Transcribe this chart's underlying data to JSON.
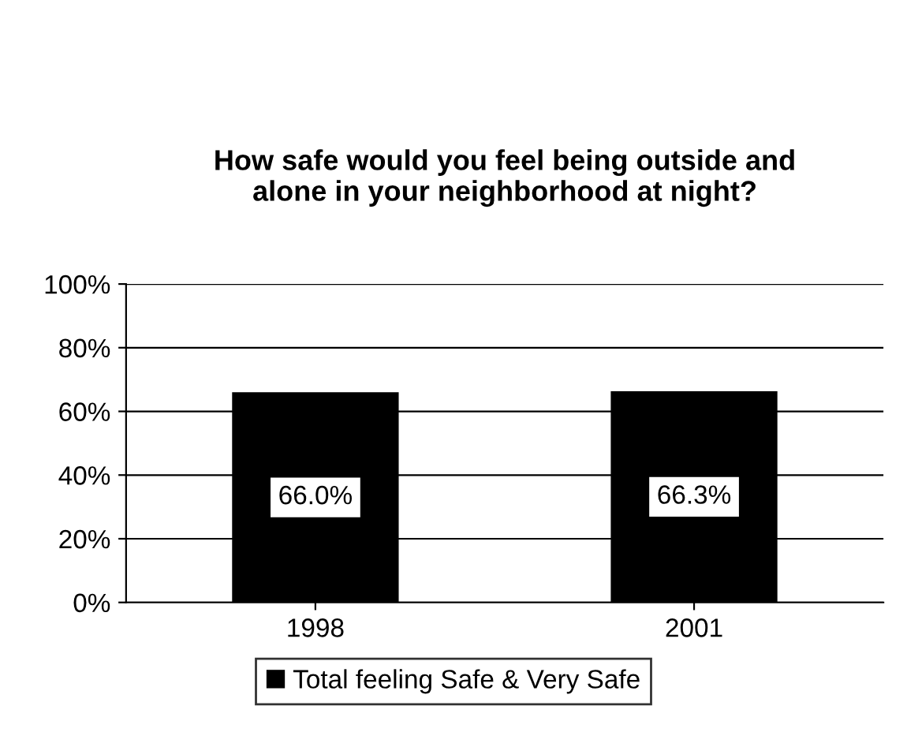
{
  "chart_data": {
    "type": "bar",
    "title": "How safe would you feel being outside and\nalone in your neighborhood at night?",
    "categories": [
      "1998",
      "2001"
    ],
    "series": [
      {
        "name": "Total feeling Safe & Very Safe",
        "color": "#000000",
        "values": [
          66.0,
          66.3
        ],
        "value_labels": [
          "66.0%",
          "66.3%"
        ]
      }
    ],
    "ylim": [
      0,
      100
    ],
    "yticks": [
      {
        "value": 0,
        "label": "0%"
      },
      {
        "value": 20,
        "label": "20%"
      },
      {
        "value": 40,
        "label": "40%"
      },
      {
        "value": 60,
        "label": "60%"
      },
      {
        "value": 80,
        "label": "80%"
      },
      {
        "value": 100,
        "label": "100%"
      }
    ],
    "grid": "y",
    "legend": "bottom"
  }
}
